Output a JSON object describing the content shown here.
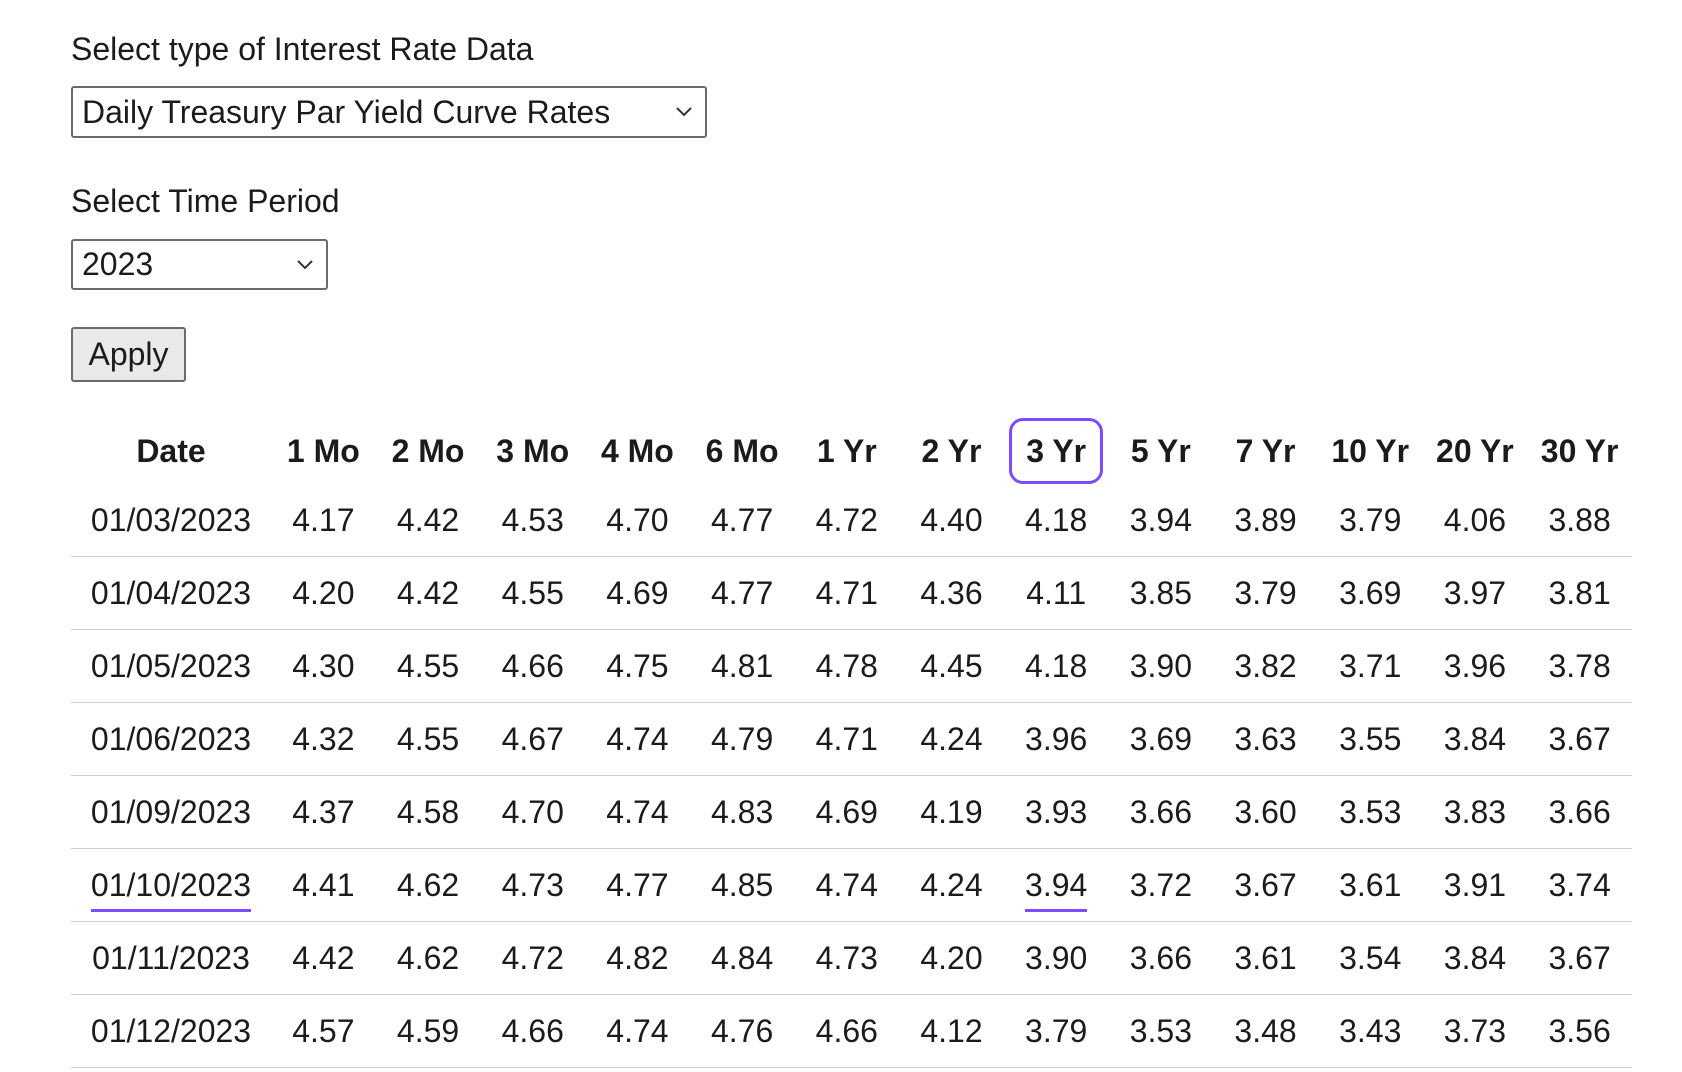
{
  "form": {
    "type_label": "Select type of Interest Rate Data",
    "type_value": "Daily Treasury Par Yield Curve Rates",
    "period_label": "Select Time Period",
    "period_value": "2023",
    "apply": "Apply"
  },
  "table": {
    "columns": [
      "Date",
      "1 Mo",
      "2 Mo",
      "3 Mo",
      "4 Mo",
      "6 Mo",
      "1 Yr",
      "2 Yr",
      "3 Yr",
      "5 Yr",
      "7 Yr",
      "10 Yr",
      "20 Yr",
      "30 Yr"
    ],
    "rows": [
      [
        "01/03/2023",
        "4.17",
        "4.42",
        "4.53",
        "4.70",
        "4.77",
        "4.72",
        "4.40",
        "4.18",
        "3.94",
        "3.89",
        "3.79",
        "4.06",
        "3.88"
      ],
      [
        "01/04/2023",
        "4.20",
        "4.42",
        "4.55",
        "4.69",
        "4.77",
        "4.71",
        "4.36",
        "4.11",
        "3.85",
        "3.79",
        "3.69",
        "3.97",
        "3.81"
      ],
      [
        "01/05/2023",
        "4.30",
        "4.55",
        "4.66",
        "4.75",
        "4.81",
        "4.78",
        "4.45",
        "4.18",
        "3.90",
        "3.82",
        "3.71",
        "3.96",
        "3.78"
      ],
      [
        "01/06/2023",
        "4.32",
        "4.55",
        "4.67",
        "4.74",
        "4.79",
        "4.71",
        "4.24",
        "3.96",
        "3.69",
        "3.63",
        "3.55",
        "3.84",
        "3.67"
      ],
      [
        "01/09/2023",
        "4.37",
        "4.58",
        "4.70",
        "4.74",
        "4.83",
        "4.69",
        "4.19",
        "3.93",
        "3.66",
        "3.60",
        "3.53",
        "3.83",
        "3.66"
      ],
      [
        "01/10/2023",
        "4.41",
        "4.62",
        "4.73",
        "4.77",
        "4.85",
        "4.74",
        "4.24",
        "3.94",
        "3.72",
        "3.67",
        "3.61",
        "3.91",
        "3.74"
      ],
      [
        "01/11/2023",
        "4.42",
        "4.62",
        "4.72",
        "4.82",
        "4.84",
        "4.73",
        "4.20",
        "3.90",
        "3.66",
        "3.61",
        "3.54",
        "3.84",
        "3.67"
      ],
      [
        "01/12/2023",
        "4.57",
        "4.59",
        "4.66",
        "4.74",
        "4.76",
        "4.66",
        "4.12",
        "3.79",
        "3.53",
        "3.48",
        "3.43",
        "3.73",
        "3.56"
      ]
    ]
  }
}
